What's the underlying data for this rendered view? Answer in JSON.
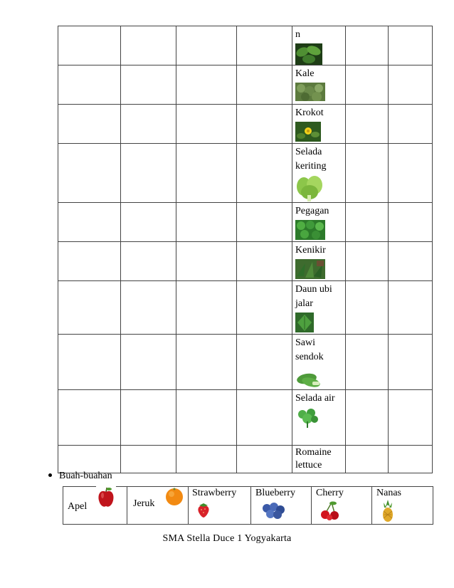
{
  "vegetables": [
    {
      "name": "n",
      "icon": "leaf-cluster-icon",
      "color": "#3f7a2c"
    },
    {
      "name": "Kale",
      "icon": "kale-icon",
      "color": "#6b8a4a"
    },
    {
      "name": "Krokot",
      "icon": "purslane-flower-icon",
      "color": "#4f7f2e"
    },
    {
      "name": "Selada keriting",
      "icon": "curly-lettuce-icon",
      "color": "#8cc64a"
    },
    {
      "name": "Pegagan",
      "icon": "gotu-kola-icon",
      "color": "#3f9a3a"
    },
    {
      "name": "Kenikir",
      "icon": "kenikir-leaves-icon",
      "color": "#2f6e2a"
    },
    {
      "name": "Daun ubi jalar",
      "icon": "sweet-potato-leaf-icon",
      "color": "#3d8a34"
    },
    {
      "name": "Sawi sendok",
      "icon": "bok-choy-icon",
      "color": "#4e9a3a"
    },
    {
      "name": "Selada air",
      "icon": "watercress-icon",
      "color": "#3f9e3c"
    },
    {
      "name": "Romaine lettuce",
      "icon": "",
      "color": ""
    }
  ],
  "fruit_section": {
    "heading": "Buah-buahan",
    "items": [
      {
        "name": "Apel",
        "icon": "apple-icon",
        "color": "#c0141c"
      },
      {
        "name": "Jeruk",
        "icon": "orange-icon",
        "color": "#f28a12"
      },
      {
        "name": "Strawberry",
        "icon": "strawberry-icon",
        "color": "#d8222a"
      },
      {
        "name": "Blueberry",
        "icon": "blueberry-icon",
        "color": "#3b5aa8"
      },
      {
        "name": "Cherry",
        "icon": "cherry-icon",
        "color": "#d2161f"
      },
      {
        "name": "Nanas",
        "icon": "pineapple-icon",
        "color": "#e0a92a"
      }
    ]
  },
  "footer": "SMA  Stella Duce 1  Yogyakarta"
}
